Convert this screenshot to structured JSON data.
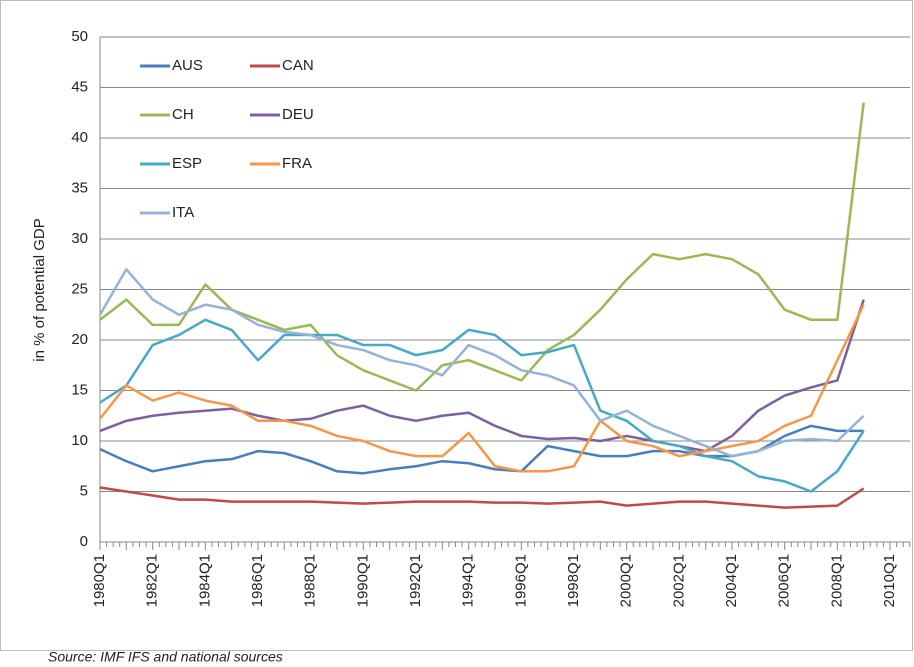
{
  "chart_data": {
    "type": "line",
    "y_label": "in % of potential GDP",
    "source": "Source: IMF IFS and national sources",
    "categories": [
      "1980Q1",
      null,
      "1982Q1",
      null,
      "1984Q1",
      null,
      "1986Q1",
      null,
      "1988Q1",
      null,
      "1990Q1",
      null,
      "1992Q1",
      null,
      "1994Q1",
      null,
      "1996Q1",
      null,
      "1998Q1",
      null,
      "2000Q1",
      null,
      "2002Q1",
      null,
      "2004Q1",
      null,
      "2006Q1",
      null,
      "2008Q1",
      null,
      "2010Q1"
    ],
    "ylim": [
      0,
      50
    ],
    "yticks": [
      0,
      5,
      10,
      15,
      20,
      25,
      30,
      35,
      40,
      45,
      50
    ],
    "grid": true,
    "legend": "top-left",
    "series": [
      {
        "name": "AUS",
        "color": "#4a7ebb",
        "values": [
          9.2,
          8.0,
          7.0,
          7.5,
          8.0,
          8.2,
          9.0,
          8.8,
          8.0,
          7.0,
          6.8,
          7.2,
          7.5,
          8.0,
          7.8,
          7.2,
          7.0,
          9.5,
          9.0,
          8.5,
          8.5,
          9.0,
          9.0,
          8.5,
          8.5,
          9.0,
          10.5,
          11.5,
          11.0,
          11.0,
          null
        ]
      },
      {
        "name": "CAN",
        "color": "#be4b48",
        "values": [
          5.4,
          5.0,
          4.6,
          4.2,
          4.2,
          4.0,
          4.0,
          4.0,
          4.0,
          3.9,
          3.8,
          3.9,
          4.0,
          4.0,
          4.0,
          3.9,
          3.9,
          3.8,
          3.9,
          4.0,
          3.6,
          3.8,
          4.0,
          4.0,
          3.8,
          3.6,
          3.4,
          3.5,
          3.6,
          5.3,
          null
        ]
      },
      {
        "name": "CH",
        "color": "#98b954",
        "values": [
          22.0,
          24.0,
          21.5,
          21.5,
          25.5,
          23.0,
          22.0,
          21.0,
          21.5,
          18.5,
          17.0,
          16.0,
          15.0,
          17.5,
          18.0,
          17.0,
          16.0,
          19.0,
          20.5,
          23.0,
          26.0,
          28.5,
          28.0,
          28.5,
          28.0,
          26.5,
          23.0,
          22.0,
          22.0,
          43.5,
          null
        ]
      },
      {
        "name": "DEU",
        "color": "#7d60a0",
        "values": [
          11.0,
          12.0,
          12.5,
          12.8,
          13.0,
          13.2,
          12.5,
          12.0,
          12.2,
          13.0,
          13.5,
          12.5,
          12.0,
          12.5,
          12.8,
          11.5,
          10.5,
          10.2,
          10.3,
          10.0,
          10.5,
          10.0,
          9.5,
          9.0,
          10.5,
          13.0,
          14.5,
          15.3,
          16.0,
          24.0,
          null
        ]
      },
      {
        "name": "ESP",
        "color": "#46aac5",
        "values": [
          13.8,
          15.5,
          19.5,
          20.5,
          22.0,
          21.0,
          18.0,
          20.5,
          20.5,
          20.5,
          19.5,
          19.5,
          18.5,
          19.0,
          21.0,
          20.5,
          18.5,
          18.8,
          19.5,
          13.0,
          12.0,
          10.0,
          9.5,
          8.5,
          8.0,
          6.5,
          6.0,
          5.0,
          7.0,
          11.0,
          null
        ]
      },
      {
        "name": "FRA",
        "color": "#f79646",
        "values": [
          12.2,
          15.5,
          14.0,
          14.8,
          14.0,
          13.5,
          12.0,
          12.0,
          11.5,
          10.5,
          10.0,
          9.0,
          8.5,
          8.5,
          10.8,
          7.5,
          7.0,
          7.0,
          7.5,
          12.0,
          10.0,
          9.5,
          8.5,
          9.0,
          9.5,
          10.0,
          11.5,
          12.5,
          18.0,
          23.5,
          null
        ]
      },
      {
        "name": "ITA",
        "color": "#95b3d7",
        "values": [
          22.5,
          27.0,
          24.0,
          22.5,
          23.5,
          23.0,
          21.5,
          20.8,
          20.5,
          19.5,
          19.0,
          18.0,
          17.5,
          16.5,
          19.5,
          18.5,
          17.0,
          16.5,
          15.5,
          12.0,
          13.0,
          11.5,
          10.5,
          9.5,
          8.5,
          9.0,
          10.0,
          10.2,
          10.0,
          12.5,
          null
        ]
      }
    ]
  }
}
